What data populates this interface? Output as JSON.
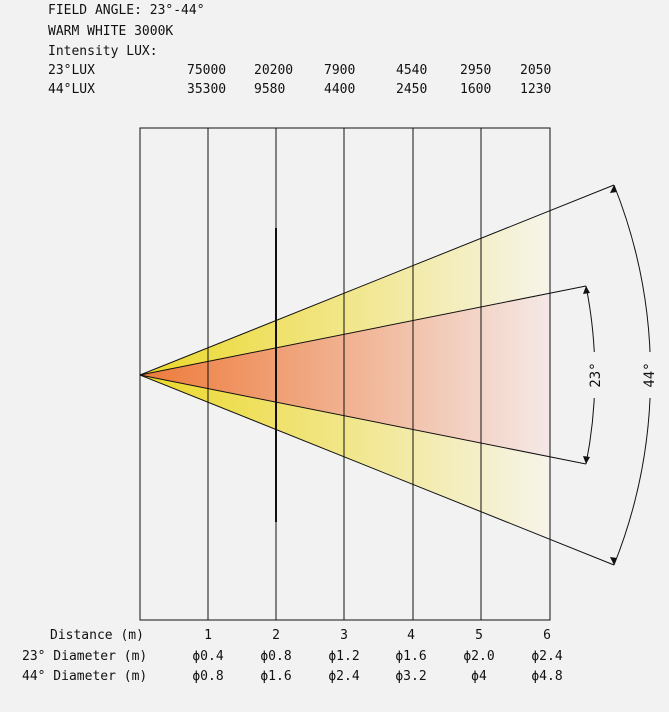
{
  "header": {
    "field_angle": "FIELD ANGLE: 23°-44°",
    "color": "WARM WHITE 3000K",
    "intensity_title": "Intensity LUX:"
  },
  "lux": {
    "rows": [
      {
        "label": "23°LUX",
        "values": [
          "75000",
          "20200",
          "7900",
          "4540",
          "2950",
          "2050"
        ]
      },
      {
        "label": "44°LUX",
        "values": [
          "35300",
          "9580",
          "4400",
          "2450",
          "1600",
          "1230"
        ]
      }
    ]
  },
  "beam": {
    "narrow_angle_label": "23°",
    "wide_angle_label": "44°",
    "narrow_deg": 23,
    "wide_deg": 44,
    "colors": {
      "narrow_start": "#ee7a3a",
      "narrow_end": "#f4e8e6",
      "wide_start": "#ecd829",
      "wide_end": "#f6f4ea"
    }
  },
  "footer": {
    "distance_label": "Distance (m)",
    "distances": [
      "1",
      "2",
      "3",
      "4",
      "5",
      "6"
    ],
    "d23_label": "23° Diameter (m)",
    "d23_values": [
      "ϕ0.4",
      "ϕ0.8",
      "ϕ1.2",
      "ϕ1.6",
      "ϕ2.0",
      "ϕ2.4"
    ],
    "d44_label": "44° Diameter (m)",
    "d44_values": [
      "ϕ0.8",
      "ϕ1.6",
      "ϕ2.4",
      "ϕ3.2",
      "ϕ4",
      "ϕ4.8"
    ]
  }
}
